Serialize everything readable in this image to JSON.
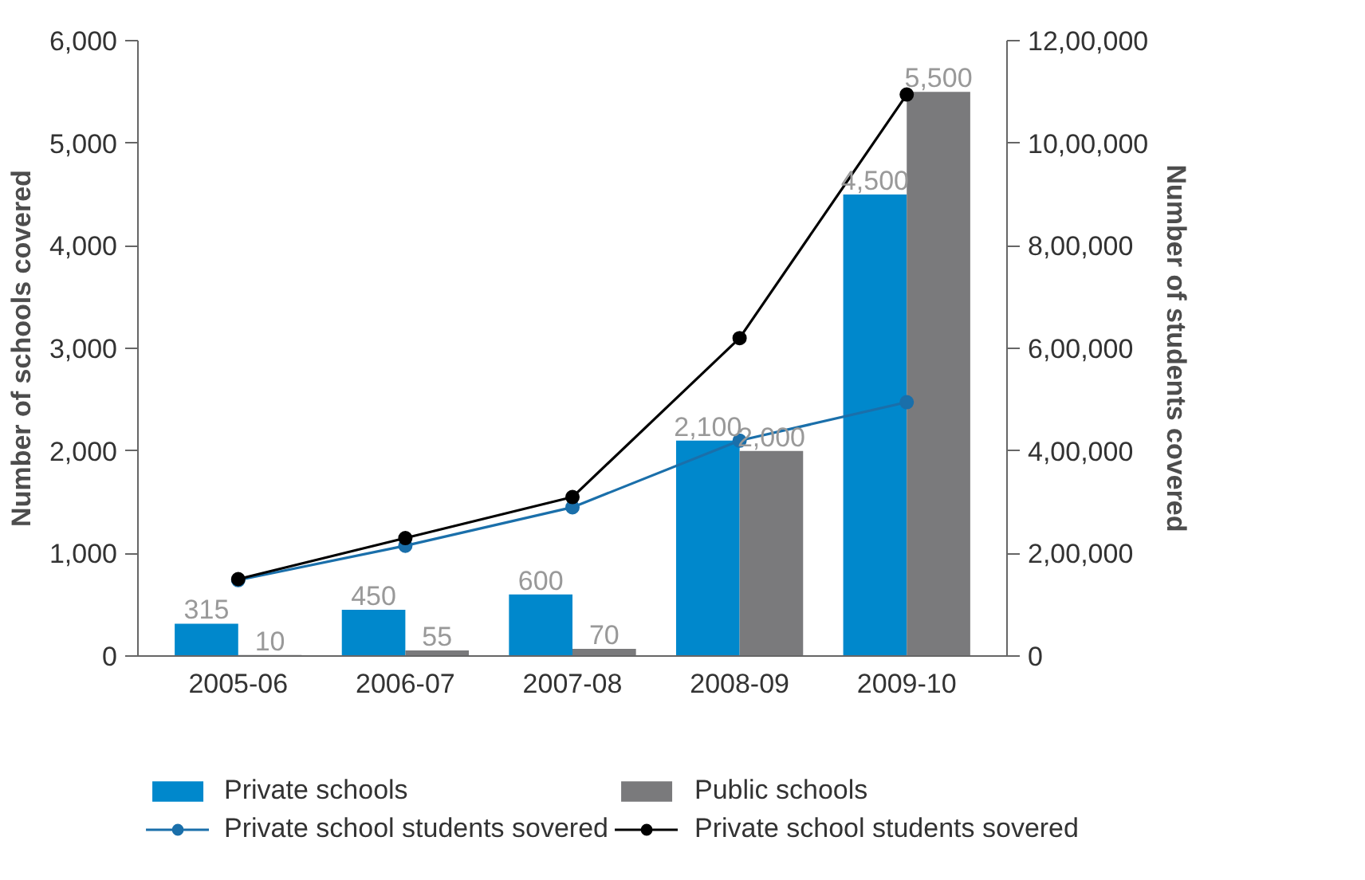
{
  "chart_data": {
    "type": "bar",
    "categories": [
      "2005-06",
      "2006-07",
      "2007-08",
      "2008-09",
      "2009-10"
    ],
    "ylabel": "Number of schools covered",
    "y2label": "Number of students covered",
    "series": [
      {
        "name": "Private schools",
        "color": "#0088cc",
        "values": [
          315,
          450,
          600,
          2100,
          4500
        ],
        "value_labels": [
          "315",
          "450",
          "600",
          "2,100",
          "4,500"
        ]
      },
      {
        "name": "Public schools",
        "color": "#7a7a7c",
        "values": [
          10,
          55,
          70,
          2000,
          5500
        ],
        "value_labels": [
          "10",
          "55",
          "70",
          "2,000",
          "5,500"
        ]
      },
      {
        "name": "Private school students sovered",
        "type": "line",
        "axis": "y2",
        "color": "#1a6faa",
        "values": [
          148000,
          215000,
          290000,
          420000,
          495000
        ]
      },
      {
        "name": "Private school students sovered",
        "type": "line",
        "axis": "y2",
        "color": "#000000",
        "values": [
          150000,
          230000,
          310000,
          620000,
          1095000
        ]
      }
    ],
    "ylim": [
      0,
      6000
    ],
    "yticks": [
      {
        "value": 0,
        "label": "0"
      },
      {
        "value": 1000,
        "label": "1,000"
      },
      {
        "value": 2000,
        "label": "2,000"
      },
      {
        "value": 3000,
        "label": "3,000"
      },
      {
        "value": 4000,
        "label": "4,000"
      },
      {
        "value": 5000,
        "label": "5,000"
      },
      {
        "value": 6000,
        "label": "6,000"
      }
    ],
    "y2lim": [
      0,
      1200000
    ],
    "y2ticks": [
      {
        "value": 0,
        "label": "0"
      },
      {
        "value": 200000,
        "label": "2,00,000"
      },
      {
        "value": 400000,
        "label": "4,00,000"
      },
      {
        "value": 600000,
        "label": "6,00,000"
      },
      {
        "value": 800000,
        "label": "8,00,000"
      },
      {
        "value": 1000000,
        "label": "10,00,000"
      },
      {
        "value": 1200000,
        "label": "12,00,000"
      }
    ],
    "marker": "circle",
    "line_style": "solid",
    "grid": false,
    "legend": "bottom"
  }
}
